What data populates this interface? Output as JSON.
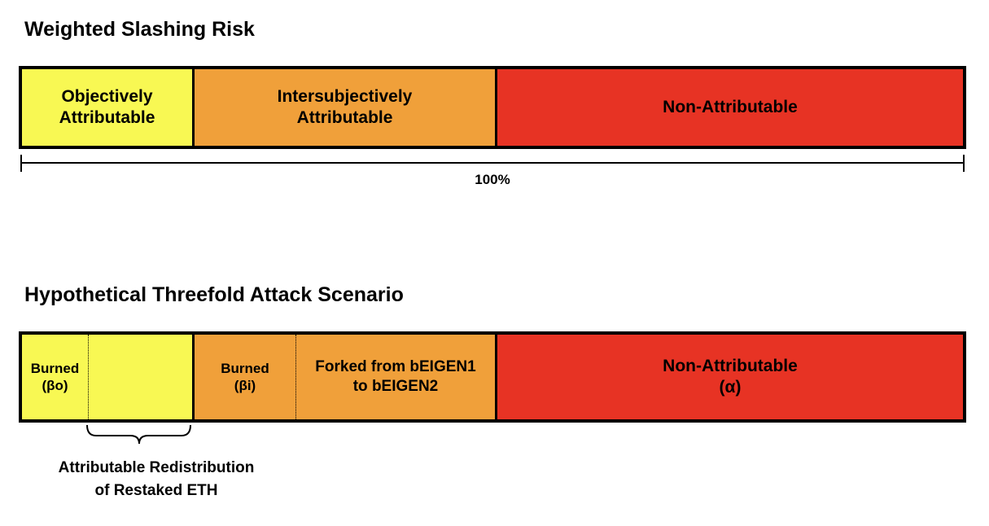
{
  "colors": {
    "objective": "#F8F853",
    "intersubjective": "#F0A03A",
    "non_attributable": "#E73324",
    "outline": "#000000"
  },
  "section1": {
    "title": "Weighted Slashing Risk",
    "segments": [
      {
        "label": "Objectively\nAttributable",
        "color": "#F8F853"
      },
      {
        "label": "Intersubjectively\nAttributable",
        "color": "#F0A03A"
      },
      {
        "label": "Non-Attributable",
        "color": "#E73324"
      }
    ],
    "total_label": "100%"
  },
  "section2": {
    "title": "Hypothetical Threefold Attack Scenario",
    "segments": [
      {
        "label": "Burned\n(βo)",
        "color": "#F8F853"
      },
      {
        "label": "",
        "color": "#F8F853"
      },
      {
        "label": "Burned\n(βi)",
        "color": "#F0A03A"
      },
      {
        "label": "Forked from bEIGEN1\nto bEIGEN2",
        "color": "#F0A03A"
      },
      {
        "label": "Non-Attributable\n(α)",
        "color": "#E73324"
      }
    ],
    "brace_caption": "Attributable Redistribution\nof Restaked ETH"
  }
}
